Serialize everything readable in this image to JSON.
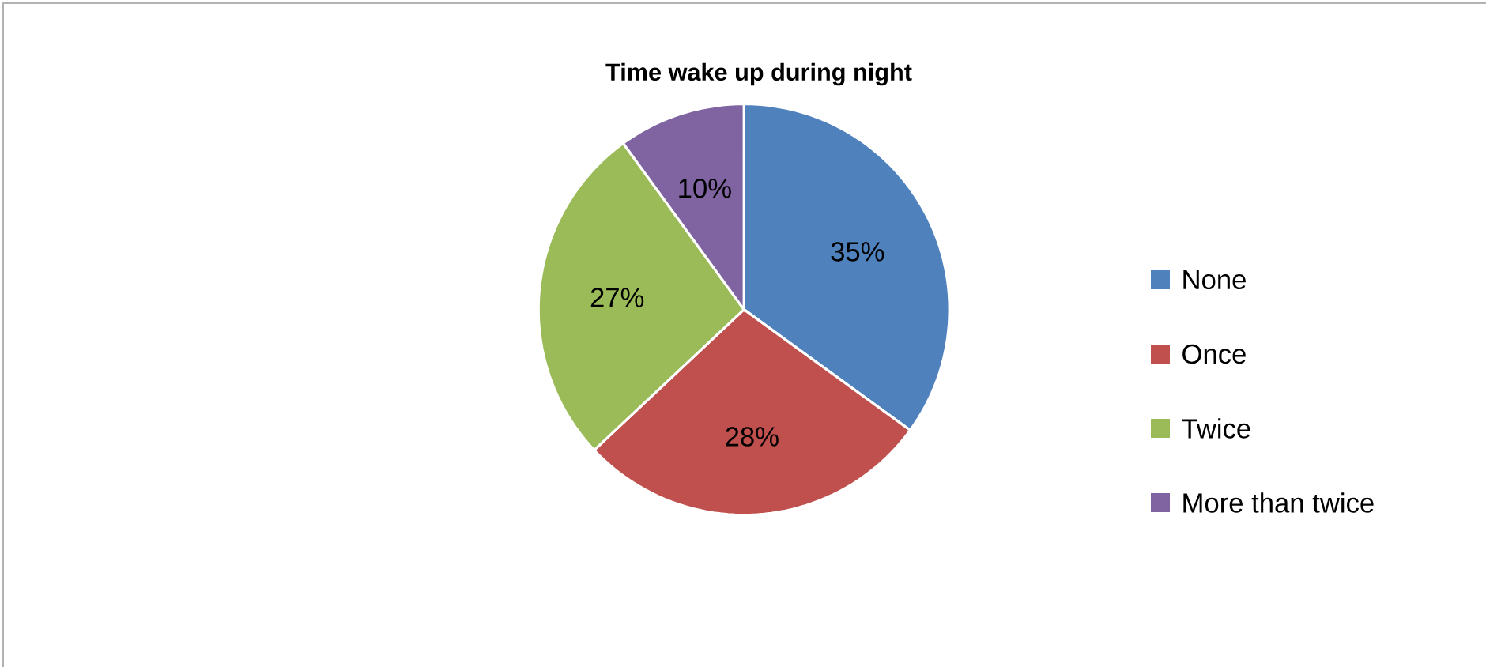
{
  "chart_data": {
    "type": "pie",
    "title": "Time wake up during night",
    "categories": [
      "None",
      "Once",
      "Twice",
      "More than twice"
    ],
    "values": [
      35,
      28,
      27,
      10
    ],
    "colors": [
      "#4f81bd",
      "#c0504d",
      "#9bbb59",
      "#8064a2"
    ],
    "value_labels": [
      "35%",
      "28%",
      "27%",
      "10%"
    ],
    "legend": "right"
  }
}
